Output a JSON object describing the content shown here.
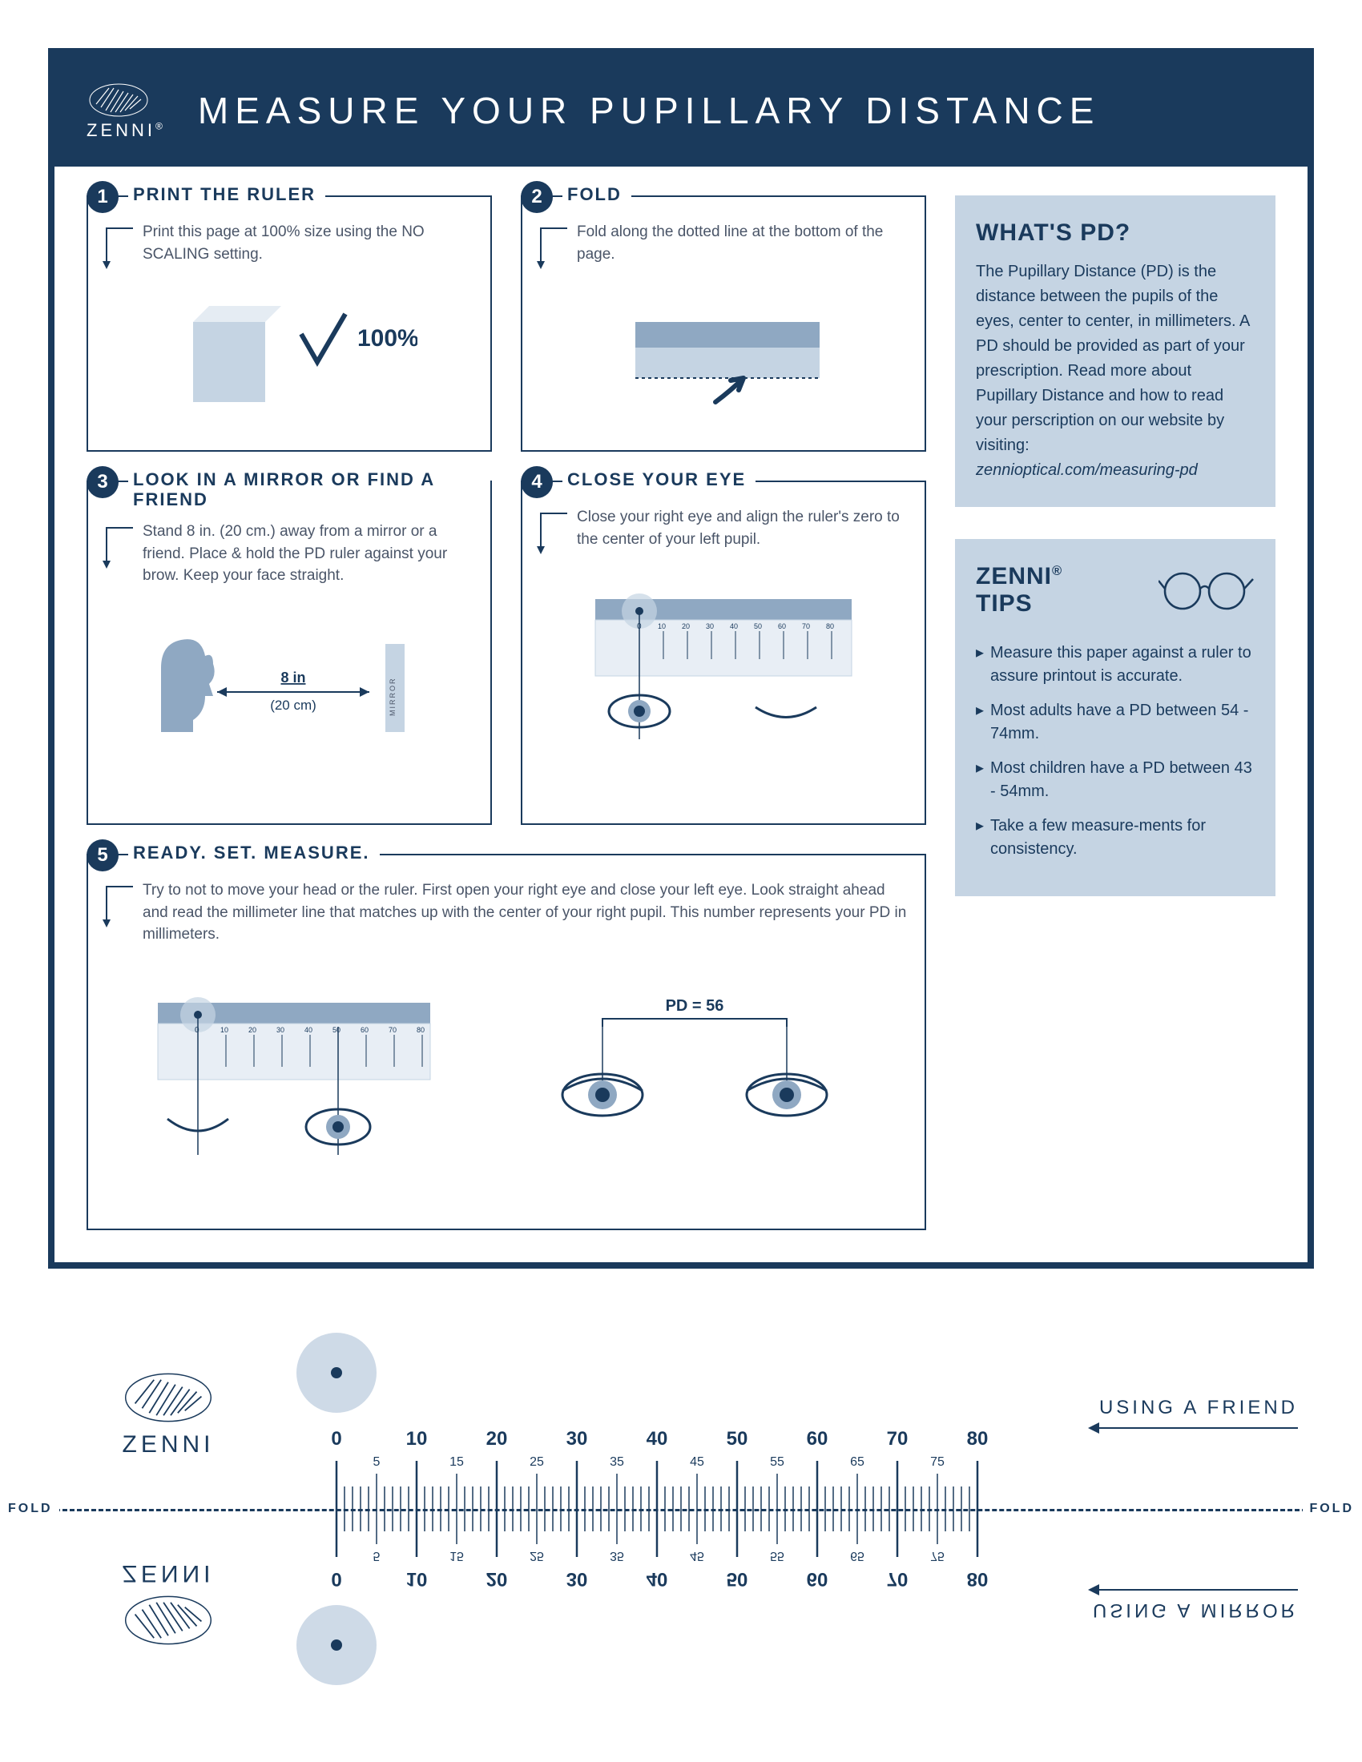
{
  "brand": "ZENNI",
  "header_title": "MEASURE YOUR PUPILLARY DISTANCE",
  "colors": {
    "primary": "#1a3a5c",
    "sidebar_bg": "#c5d4e3",
    "pale": "#b5c8db",
    "text_muted": "#4a5568",
    "white": "#ffffff"
  },
  "steps": [
    {
      "num": "1",
      "title": "PRINT THE RULER",
      "body": "Print this page at 100% size using the NO SCALING setting.",
      "illus_label": "100%"
    },
    {
      "num": "2",
      "title": "FOLD",
      "body": "Fold along the dotted line at the bottom of the page."
    },
    {
      "num": "3",
      "title": "LOOK IN A MIRROR OR FIND A FRIEND",
      "body": "Stand 8 in. (20 cm.) away from a mirror or a friend. Place & hold the PD ruler against your brow. Keep your face straight.",
      "dist_in": "8 in",
      "dist_cm": "(20 cm)",
      "mirror_label": "MIRROR"
    },
    {
      "num": "4",
      "title": "CLOSE YOUR EYE",
      "body": "Close your right eye and align the ruler's zero to the center of your left pupil."
    },
    {
      "num": "5",
      "title": "READY. SET. MEASURE.",
      "body": "Try to not to move your head or the ruler. First open your right eye and close your left eye. Look straight ahead and read the millimeter line that matches up with the center of your right pupil. This number represents your PD in millimeters.",
      "pd_label": "PD = 56"
    }
  ],
  "whats_pd": {
    "title": "WHAT'S PD?",
    "text": "The Pupillary Distance (PD) is the distance between the pupils of the eyes, center to center, in millimeters. A PD should be provided as part of your prescription. Read more about Pupillary Distance and how to read your perscription on our website by visiting:",
    "link": "zennioptical.com/measuring-pd"
  },
  "tips": {
    "title_line1": "ZENNI",
    "title_line2": "TIPS",
    "items": [
      "Measure this paper against a ruler to assure printout is accurate.",
      "Most adults have a PD between 54 - 74mm.",
      "Most children have a PD between 43 - 54mm.",
      "Take a few measure-ments for consistency."
    ]
  },
  "ruler": {
    "major_ticks": [
      0,
      10,
      20,
      30,
      40,
      50,
      60,
      70,
      80
    ],
    "minor_labels": [
      5,
      15,
      25,
      35,
      45,
      55,
      65,
      75
    ],
    "friend_label": "USING A FRIEND",
    "mirror_label": "USING A MIRROR",
    "fold_label": "FOLD"
  }
}
